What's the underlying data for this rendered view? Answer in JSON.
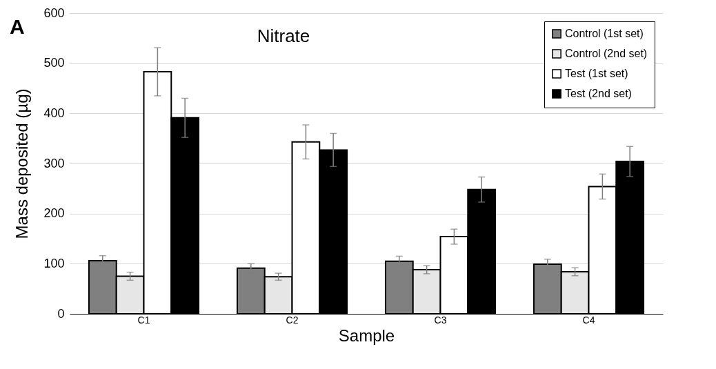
{
  "chart_data": {
    "type": "bar",
    "title": "Nitrate",
    "xlabel": "Sample",
    "ylabel": "Mass deposited (µg)",
    "annotations": [
      "A"
    ],
    "categories": [
      "C1",
      "C2",
      "C3",
      "C4"
    ],
    "series": [
      {
        "name": "Control (1st set)",
        "color": "#808080",
        "values": [
          106,
          91,
          105,
          99
        ],
        "errors": [
          10,
          9,
          10,
          10
        ]
      },
      {
        "name": "Control (2nd set)",
        "color": "#e6e6e6",
        "values": [
          75,
          74,
          88,
          84
        ],
        "errors": [
          8,
          7,
          8,
          8
        ]
      },
      {
        "name": "Test (1st set)",
        "color": "#ffffff",
        "values": [
          483,
          343,
          154,
          254
        ],
        "errors": [
          48,
          34,
          15,
          25
        ]
      },
      {
        "name": "Test (2nd set)",
        "color": "#000000",
        "values": [
          391,
          327,
          248,
          304
        ],
        "errors": [
          39,
          33,
          25,
          30
        ]
      }
    ],
    "ylim": [
      0,
      600
    ],
    "yticks": [
      0,
      100,
      200,
      300,
      400,
      500,
      600
    ],
    "grid": "y",
    "legend": "top right"
  }
}
